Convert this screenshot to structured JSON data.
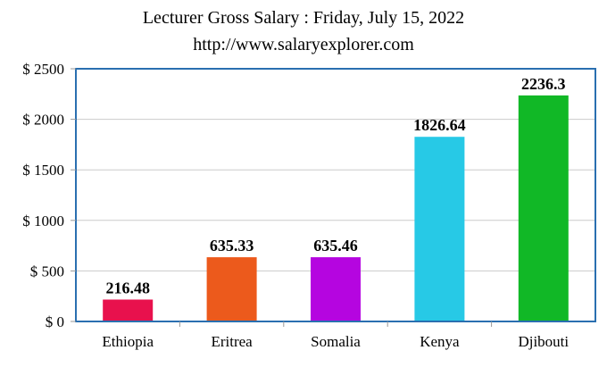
{
  "chart_data": {
    "type": "bar",
    "title": "Lecturer Gross Salary : Friday, July 15, 2022",
    "subtitle": "http://www.salaryexplorer.com",
    "categories": [
      "Ethiopia",
      "Eritrea",
      "Somalia",
      "Kenya",
      "Djibouti"
    ],
    "values": [
      216.48,
      635.33,
      635.46,
      1826.64,
      2236.3
    ],
    "data_labels": [
      "216.48",
      "635.33",
      "635.46",
      "1826.64",
      "2236.3"
    ],
    "colors": [
      "#e8114d",
      "#ec5a1c",
      "#b505e0",
      "#27c9e6",
      "#11b826"
    ],
    "yticks": [
      0,
      500,
      1000,
      1500,
      2000,
      2500
    ],
    "ytick_labels": [
      "$ 0",
      "$ 500",
      "$ 1000",
      "$ 1500",
      "$ 2000",
      "$ 2500"
    ],
    "ylim": [
      0,
      2500
    ],
    "grid": true,
    "frame_color": "#2a6fb0",
    "legend": "none"
  }
}
